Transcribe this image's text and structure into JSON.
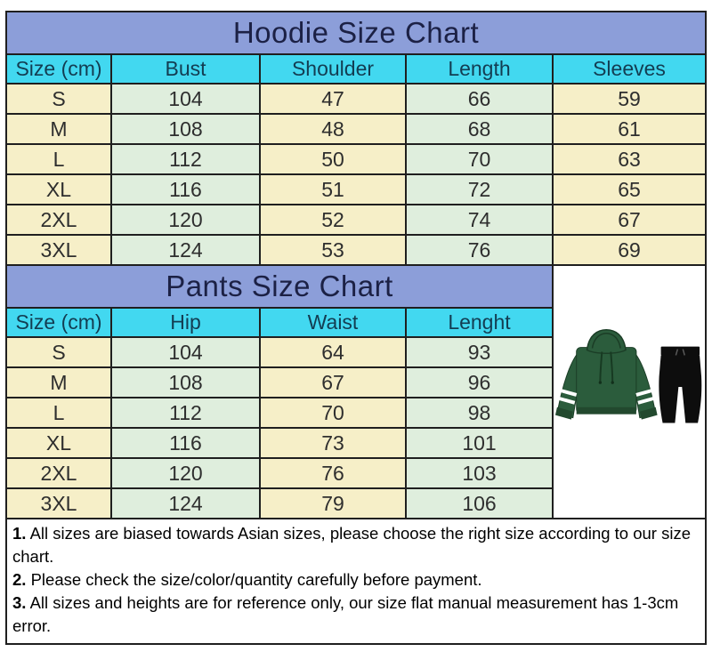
{
  "chart_data": [
    {
      "type": "table",
      "title": "Hoodie Size Chart",
      "columns": [
        "Size (cm)",
        "Bust",
        "Shoulder",
        "Length",
        "Sleeves"
      ],
      "rows": [
        [
          "S",
          "104",
          "47",
          "66",
          "59"
        ],
        [
          "M",
          "108",
          "48",
          "68",
          "61"
        ],
        [
          "L",
          "112",
          "50",
          "70",
          "63"
        ],
        [
          "XL",
          "116",
          "51",
          "72",
          "65"
        ],
        [
          "2XL",
          "120",
          "52",
          "74",
          "67"
        ],
        [
          "3XL",
          "124",
          "53",
          "76",
          "69"
        ]
      ]
    },
    {
      "type": "table",
      "title": "Pants Size Chart",
      "columns": [
        "Size (cm)",
        "Hip",
        "Waist",
        "Lenght"
      ],
      "rows": [
        [
          "S",
          "104",
          "64",
          "93"
        ],
        [
          "M",
          "108",
          "67",
          "96"
        ],
        [
          "L",
          "112",
          "70",
          "98"
        ],
        [
          "XL",
          "116",
          "73",
          "101"
        ],
        [
          "2XL",
          "120",
          "76",
          "103"
        ],
        [
          "3XL",
          "124",
          "79",
          "106"
        ]
      ]
    }
  ],
  "product_image": {
    "alt": "green hooded sweatshirt with two white stripes on each sleeve and black jogger pants"
  },
  "notes": [
    {
      "num": "1.",
      "text": "All sizes are biased towards Asian sizes, please choose the right size according to our size chart."
    },
    {
      "num": "2.",
      "text": "Please check the size/color/quantity carefully before payment."
    },
    {
      "num": "3.",
      "text": "All sizes and heights are for reference only, our size flat manual measurement has 1-3cm error."
    }
  ],
  "colors": {
    "title_bg": "#8c9ed9",
    "header_bg": "#42d8f0",
    "cell_cream": "#f6efc8",
    "cell_green": "#dfeedd",
    "grid_border": "#1f1f1f",
    "title_text": "#1c2145",
    "header_text": "#133d52",
    "cell_text": "#2e2e2e",
    "note_text": "#000000",
    "hoodie_green": "#2b5c3c",
    "pants_black": "#0d0d0d"
  }
}
